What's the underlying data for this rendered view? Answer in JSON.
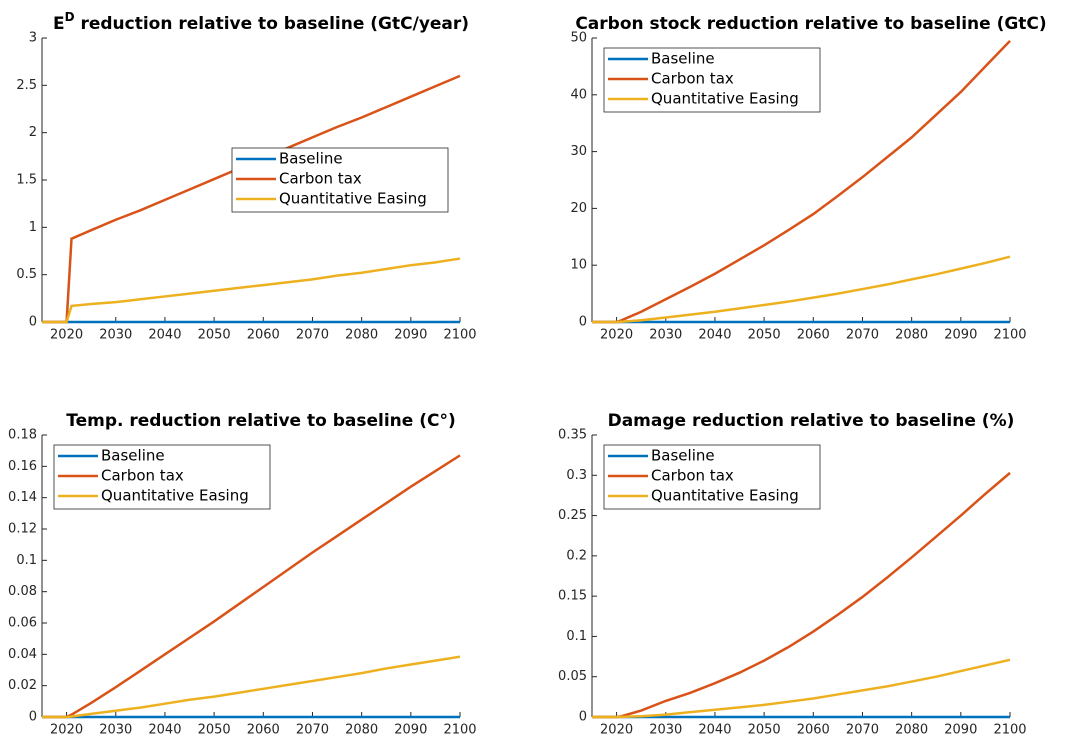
{
  "chart_data": [
    {
      "type": "line",
      "title": [
        {
          "text": "E"
        },
        {
          "text": "D",
          "superscript": true
        },
        {
          "text": " reduction relative to baseline (GtC/year)"
        }
      ],
      "x": [
        2015,
        2020,
        2021,
        2025,
        2030,
        2035,
        2040,
        2045,
        2050,
        2055,
        2060,
        2065,
        2070,
        2075,
        2080,
        2085,
        2090,
        2095,
        2100
      ],
      "series": [
        {
          "name": "Baseline",
          "color": "#0072bd",
          "values": [
            0,
            0,
            0,
            0,
            0,
            0,
            0,
            0,
            0,
            0,
            0,
            0,
            0,
            0,
            0,
            0,
            0,
            0,
            0
          ]
        },
        {
          "name": "Carbon tax",
          "color": "#d95319",
          "values": [
            0,
            0,
            0.88,
            0.97,
            1.08,
            1.18,
            1.29,
            1.4,
            1.51,
            1.62,
            1.73,
            1.84,
            1.95,
            2.06,
            2.16,
            2.27,
            2.38,
            2.49,
            2.6
          ]
        },
        {
          "name": "Quantitative Easing",
          "color": "#edb120",
          "values": [
            0,
            0,
            0.17,
            0.19,
            0.21,
            0.24,
            0.27,
            0.3,
            0.33,
            0.36,
            0.39,
            0.42,
            0.45,
            0.49,
            0.52,
            0.56,
            0.6,
            0.63,
            0.67
          ]
        }
      ],
      "xlim": [
        2015,
        2100
      ],
      "xticks": [
        2020,
        2030,
        2040,
        2050,
        2060,
        2070,
        2080,
        2090,
        2100
      ],
      "ylim": [
        0,
        3
      ],
      "yticks": [
        0,
        0.5,
        1,
        1.5,
        2,
        2.5,
        3
      ],
      "legend": "east"
    },
    {
      "type": "line",
      "title": "Carbon stock reduction relative to baseline (GtC)",
      "x": [
        2015,
        2020,
        2021,
        2025,
        2030,
        2035,
        2040,
        2045,
        2050,
        2055,
        2060,
        2065,
        2070,
        2075,
        2080,
        2085,
        2090,
        2095,
        2100
      ],
      "series": [
        {
          "name": "Baseline",
          "color": "#0072bd",
          "values": [
            0,
            0,
            0,
            0,
            0,
            0,
            0,
            0,
            0,
            0,
            0,
            0,
            0,
            0,
            0,
            0,
            0,
            0,
            0
          ]
        },
        {
          "name": "Carbon tax",
          "color": "#d95319",
          "values": [
            0,
            0,
            0.3,
            1.8,
            4,
            6.2,
            8.5,
            11,
            13.5,
            16.2,
            19,
            22.2,
            25.5,
            29,
            32.5,
            36.5,
            40.5,
            45,
            49.5
          ]
        },
        {
          "name": "Quantitative Easing",
          "color": "#edb120",
          "values": [
            0,
            0,
            0.05,
            0.3,
            0.8,
            1.3,
            1.8,
            2.4,
            3,
            3.6,
            4.3,
            5,
            5.8,
            6.6,
            7.5,
            8.4,
            9.4,
            10.4,
            11.5
          ]
        }
      ],
      "xlim": [
        2015,
        2100
      ],
      "xticks": [
        2020,
        2030,
        2040,
        2050,
        2060,
        2070,
        2080,
        2090,
        2100
      ],
      "ylim": [
        0,
        50
      ],
      "yticks": [
        0,
        10,
        20,
        30,
        40,
        50
      ],
      "legend": "northwest"
    },
    {
      "type": "line",
      "title": "Temp. reduction relative to baseline (C°)",
      "x": [
        2015,
        2020,
        2021,
        2025,
        2030,
        2035,
        2040,
        2045,
        2050,
        2055,
        2060,
        2065,
        2070,
        2075,
        2080,
        2085,
        2090,
        2095,
        2100
      ],
      "series": [
        {
          "name": "Baseline",
          "color": "#0072bd",
          "values": [
            0,
            0,
            0,
            0,
            0,
            0,
            0,
            0,
            0,
            0,
            0,
            0,
            0,
            0,
            0,
            0,
            0,
            0,
            0
          ]
        },
        {
          "name": "Carbon tax",
          "color": "#d95319",
          "values": [
            0,
            0,
            0.0015,
            0.009,
            0.019,
            0.0295,
            0.04,
            0.0505,
            0.061,
            0.072,
            0.083,
            0.094,
            0.105,
            0.1155,
            0.126,
            0.1365,
            0.147,
            0.157,
            0.167
          ]
        },
        {
          "name": "Quantitative Easing",
          "color": "#edb120",
          "values": [
            0,
            0,
            0.0003,
            0.002,
            0.004,
            0.006,
            0.0085,
            0.011,
            0.013,
            0.0155,
            0.018,
            0.0205,
            0.023,
            0.0255,
            0.028,
            0.031,
            0.0335,
            0.036,
            0.0385
          ]
        }
      ],
      "xlim": [
        2015,
        2100
      ],
      "xticks": [
        2020,
        2030,
        2040,
        2050,
        2060,
        2070,
        2080,
        2090,
        2100
      ],
      "ylim": [
        0,
        0.18
      ],
      "yticks": [
        0,
        0.02,
        0.04,
        0.06,
        0.08,
        0.1,
        0.12,
        0.14,
        0.16,
        0.18
      ],
      "legend": "northwest"
    },
    {
      "type": "line",
      "title": "Damage reduction relative to baseline (%)",
      "x": [
        2015,
        2020,
        2021,
        2025,
        2030,
        2035,
        2040,
        2045,
        2050,
        2055,
        2060,
        2065,
        2070,
        2075,
        2080,
        2085,
        2090,
        2095,
        2100
      ],
      "series": [
        {
          "name": "Baseline",
          "color": "#0072bd",
          "values": [
            0,
            0,
            0,
            0,
            0,
            0,
            0,
            0,
            0,
            0,
            0,
            0,
            0,
            0,
            0,
            0,
            0,
            0,
            0
          ]
        },
        {
          "name": "Carbon tax",
          "color": "#d95319",
          "values": [
            0,
            0,
            0.001,
            0.008,
            0.02,
            0.03,
            0.042,
            0.055,
            0.07,
            0.087,
            0.106,
            0.127,
            0.149,
            0.173,
            0.198,
            0.224,
            0.25,
            0.277,
            0.303
          ]
        },
        {
          "name": "Quantitative Easing",
          "color": "#edb120",
          "values": [
            0,
            0,
            0.0002,
            0.001,
            0.003,
            0.006,
            0.009,
            0.012,
            0.015,
            0.019,
            0.023,
            0.028,
            0.033,
            0.038,
            0.044,
            0.05,
            0.057,
            0.064,
            0.071
          ]
        }
      ],
      "xlim": [
        2015,
        2100
      ],
      "xticks": [
        2020,
        2030,
        2040,
        2050,
        2060,
        2070,
        2080,
        2090,
        2100
      ],
      "ylim": [
        0,
        0.35
      ],
      "yticks": [
        0,
        0.05,
        0.1,
        0.15,
        0.2,
        0.25,
        0.3,
        0.35
      ],
      "legend": "northwest"
    }
  ]
}
